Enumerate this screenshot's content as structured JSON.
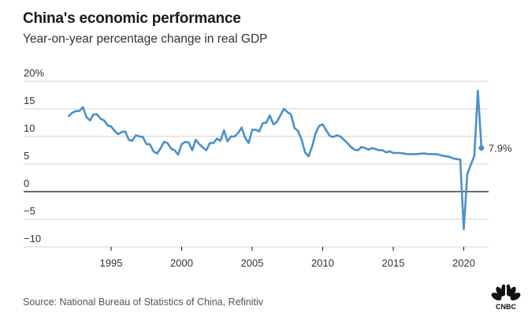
{
  "chart_data": {
    "type": "line",
    "title": "China's economic performance",
    "subtitle": "Year-on-year percentage change in real GDP",
    "source": "Source: National Bureau of Statistics of China, Refinitiv",
    "xlabel": "",
    "ylabel": "",
    "ylim": [
      -10,
      20
    ],
    "xlim": [
      1990.5,
      2021.8
    ],
    "y_ticks": [
      {
        "value": 20,
        "label": "20%"
      },
      {
        "value": 15,
        "label": "15"
      },
      {
        "value": 10,
        "label": "10"
      },
      {
        "value": 5,
        "label": "5"
      },
      {
        "value": 0,
        "label": "0"
      },
      {
        "value": -5,
        "label": "−5"
      },
      {
        "value": -10,
        "label": "−10"
      }
    ],
    "x_ticks": [
      {
        "value": 1995,
        "label": "1995"
      },
      {
        "value": 2000,
        "label": "2000"
      },
      {
        "value": 2005,
        "label": "2005"
      },
      {
        "value": 2010,
        "label": "2010"
      },
      {
        "value": 2015,
        "label": "2015"
      },
      {
        "value": 2020,
        "label": "2020"
      }
    ],
    "grid": true,
    "line_color": "#4a90c9",
    "start_year": 1992,
    "frequency": "quarterly",
    "values": [
      13.7,
      14.3,
      14.6,
      14.6,
      15.3,
      13.5,
      12.9,
      14.0,
      14.0,
      13.2,
      12.9,
      12.0,
      11.8,
      11.0,
      10.4,
      10.8,
      10.9,
      9.4,
      9.2,
      10.2,
      10.0,
      9.9,
      8.6,
      8.6,
      7.3,
      6.9,
      7.8,
      9.0,
      8.8,
      7.8,
      7.5,
      6.7,
      8.6,
      9.0,
      8.9,
      7.5,
      9.4,
      8.6,
      8.0,
      7.5,
      8.8,
      8.8,
      9.6,
      9.2,
      11.1,
      9.1,
      10.0,
      10.0,
      10.6,
      11.6,
      9.8,
      8.8,
      11.2,
      11.2,
      10.9,
      12.4,
      12.5,
      13.8,
      12.2,
      12.6,
      13.8,
      15.0,
      14.4,
      14.0,
      11.5,
      11.0,
      9.5,
      7.1,
      6.4,
      8.2,
      10.6,
      11.9,
      12.2,
      11.1,
      10.1,
      9.9,
      10.2,
      10.0,
      9.4,
      8.8,
      8.1,
      7.6,
      7.5,
      8.1,
      7.9,
      7.6,
      7.9,
      7.7,
      7.5,
      7.5,
      7.1,
      7.3,
      7.0,
      7.0,
      7.0,
      6.9,
      6.8,
      6.8,
      6.8,
      6.8,
      6.9,
      6.9,
      6.8,
      6.8,
      6.8,
      6.7,
      6.5,
      6.4,
      6.3,
      6.0,
      5.9,
      5.8,
      -6.8,
      3.2,
      4.9,
      6.5,
      18.3,
      7.9
    ],
    "end_label": "7.9%"
  },
  "brand": {
    "logo": "CNBC"
  }
}
